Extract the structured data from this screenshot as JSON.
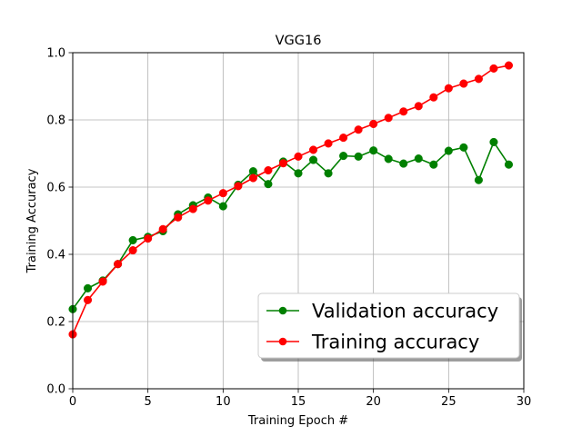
{
  "chart_data": {
    "type": "line",
    "title": "VGG16",
    "xlabel": "Training Epoch #",
    "ylabel": "Training Accuracy",
    "xlim": [
      0,
      30
    ],
    "ylim": [
      0.0,
      1.0
    ],
    "xticks": [
      0,
      5,
      10,
      15,
      20,
      25,
      30
    ],
    "xtick_labels": [
      "0",
      "5",
      "10",
      "15",
      "20",
      "25",
      "30"
    ],
    "yticks": [
      0.0,
      0.2,
      0.4,
      0.6,
      0.8,
      1.0
    ],
    "ytick_labels": [
      "0.0",
      "0.2",
      "0.4",
      "0.6",
      "0.8",
      "1.0"
    ],
    "grid": true,
    "legend_position": "lower-right",
    "x": [
      0,
      1,
      2,
      3,
      4,
      5,
      6,
      7,
      8,
      9,
      10,
      11,
      12,
      13,
      14,
      15,
      16,
      17,
      18,
      19,
      20,
      21,
      22,
      23,
      24,
      25,
      26,
      27,
      28,
      29
    ],
    "series": [
      {
        "name": "Validation accuracy",
        "color": "#008000",
        "values": [
          0.237,
          0.299,
          0.322,
          0.371,
          0.442,
          0.452,
          0.469,
          0.519,
          0.546,
          0.569,
          0.543,
          0.607,
          0.647,
          0.609,
          0.676,
          0.641,
          0.681,
          0.641,
          0.693,
          0.691,
          0.709,
          0.684,
          0.67,
          0.685,
          0.667,
          0.708,
          0.718,
          0.621,
          0.734,
          0.667
        ]
      },
      {
        "name": "Training accuracy",
        "color": "#ff0000",
        "values": [
          0.162,
          0.264,
          0.319,
          0.371,
          0.412,
          0.447,
          0.475,
          0.51,
          0.535,
          0.56,
          0.582,
          0.603,
          0.627,
          0.65,
          0.671,
          0.691,
          0.711,
          0.73,
          0.747,
          0.771,
          0.788,
          0.806,
          0.825,
          0.841,
          0.867,
          0.894,
          0.908,
          0.922,
          0.953,
          0.962
        ]
      }
    ]
  }
}
